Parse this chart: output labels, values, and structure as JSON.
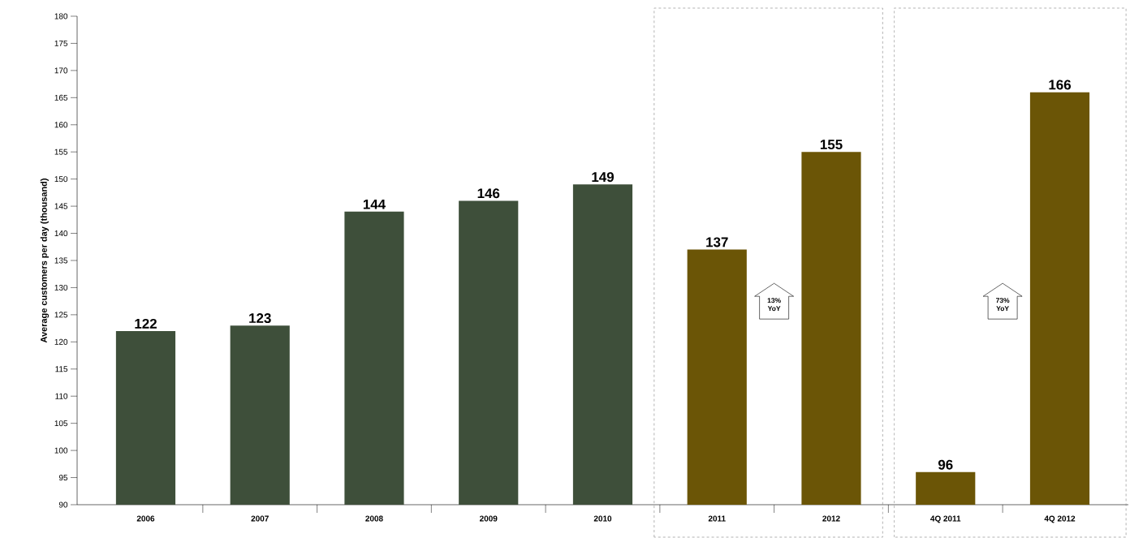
{
  "chart_data": {
    "type": "bar",
    "ylabel": "Average customers per day (thousand)",
    "categories": [
      "2006",
      "2007",
      "2008",
      "2009",
      "2010",
      "2011",
      "2012",
      "4Q 2011",
      "4Q 2012"
    ],
    "values": [
      122,
      123,
      144,
      146,
      149,
      137,
      155,
      96,
      166
    ],
    "colors": [
      "#3e4f3a",
      "#3e4f3a",
      "#3e4f3a",
      "#3e4f3a",
      "#3e4f3a",
      "#6b5506",
      "#6b5506",
      "#6b5506",
      "#6b5506"
    ],
    "ylim": [
      90,
      180
    ],
    "yticks": [
      90,
      95,
      100,
      105,
      110,
      115,
      120,
      125,
      130,
      135,
      140,
      145,
      150,
      155,
      160,
      165,
      170,
      175,
      180
    ],
    "data_labels": true,
    "grid": false,
    "annotations": [
      "13% YoY",
      "73% YoY"
    ]
  }
}
